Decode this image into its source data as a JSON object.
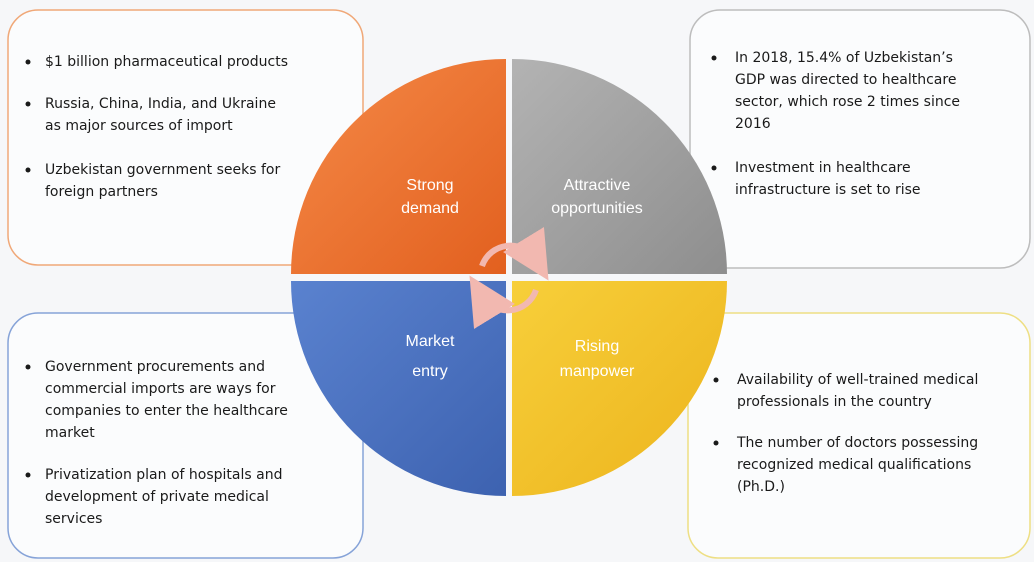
{
  "quadrants": [
    {
      "label": [
        "Strong",
        "demand"
      ],
      "bullets": [
        [
          "$1 billion pharmaceutical products"
        ],
        [
          "Russia, China, India, and Ukraine",
          "as major sources of import"
        ],
        [
          "Uzbekistan government seeks for",
          "foreign partners"
        ]
      ]
    },
    {
      "label": [
        "Attractive",
        "opportunities"
      ],
      "bullets": [
        [
          "In 2018, 15.4% of Uzbekistan’s",
          "GDP was directed to healthcare",
          "sector, which rose 2 times since",
          "2016"
        ],
        [
          "Investment in healthcare",
          "infrastructure is set to rise"
        ]
      ]
    },
    {
      "label": [
        "Market",
        "entry"
      ],
      "bullets": [
        [
          "Government procurements and",
          "commercial imports are ways for",
          "companies to enter the healthcare",
          "market"
        ],
        [
          "Privatization plan of hospitals and",
          "development of private medical",
          "services"
        ]
      ]
    },
    {
      "label": [
        "Rising",
        "manpower"
      ],
      "bullets": [
        [
          "Availability of well-trained medical",
          "professionals in the country"
        ],
        [
          "The number of doctors possessing",
          "recognized medical qualifications",
          "(Ph.D.)"
        ]
      ]
    }
  ]
}
